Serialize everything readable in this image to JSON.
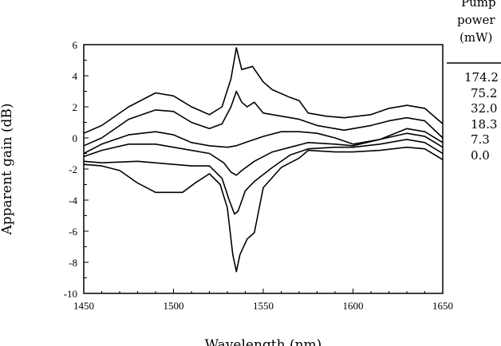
{
  "chart_data": {
    "type": "line",
    "title": "",
    "xlabel": "Wavelength (nm)",
    "ylabel": "Apparent gain (dB)",
    "xlim": [
      1450,
      1650
    ],
    "ylim": [
      -10,
      6
    ],
    "xticks": [
      1450,
      1500,
      1550,
      1600,
      1650
    ],
    "yticks": [
      6,
      4,
      2,
      0,
      -2,
      -4,
      -6,
      -8,
      -10
    ],
    "grid": false,
    "legend": {
      "title_lines": [
        "Pump",
        "power",
        "(mW)"
      ],
      "placement": "right"
    },
    "series": [
      {
        "name": "174.2",
        "x": [
          1450,
          1460,
          1475,
          1490,
          1500,
          1510,
          1520,
          1527,
          1532,
          1535,
          1538,
          1541,
          1544,
          1550,
          1555,
          1565,
          1570,
          1575,
          1585,
          1595,
          1610,
          1620,
          1630,
          1640,
          1650
        ],
        "y": [
          0.3,
          0.8,
          2.0,
          2.9,
          2.7,
          2.0,
          1.5,
          2.0,
          3.8,
          5.8,
          4.4,
          4.5,
          4.6,
          3.6,
          3.1,
          2.6,
          2.4,
          1.6,
          1.4,
          1.3,
          1.5,
          1.9,
          2.1,
          1.9,
          0.9
        ]
      },
      {
        "name": "75.2",
        "x": [
          1450,
          1460,
          1475,
          1490,
          1500,
          1510,
          1520,
          1527,
          1532,
          1535,
          1538,
          1541,
          1545,
          1550,
          1560,
          1570,
          1580,
          1595,
          1610,
          1620,
          1630,
          1640,
          1650
        ],
        "y": [
          -0.5,
          0.0,
          1.2,
          1.8,
          1.7,
          1.0,
          0.6,
          0.9,
          2.0,
          3.0,
          2.3,
          2.0,
          2.3,
          1.6,
          1.4,
          1.2,
          0.8,
          0.5,
          0.8,
          1.1,
          1.3,
          1.1,
          0.0
        ]
      },
      {
        "name": "32.0",
        "x": [
          1450,
          1460,
          1475,
          1490,
          1500,
          1510,
          1520,
          1530,
          1535,
          1540,
          1550,
          1560,
          1570,
          1580,
          1590,
          1600,
          1615,
          1630,
          1640,
          1650
        ],
        "y": [
          -1.0,
          -0.4,
          0.2,
          0.4,
          0.2,
          -0.3,
          -0.5,
          -0.6,
          -0.5,
          -0.3,
          0.1,
          0.4,
          0.4,
          0.3,
          0.0,
          -0.4,
          -0.1,
          0.6,
          0.4,
          -0.3
        ]
      },
      {
        "name": "18.3",
        "x": [
          1450,
          1460,
          1475,
          1490,
          1500,
          1510,
          1520,
          1528,
          1532,
          1535,
          1538,
          1545,
          1555,
          1565,
          1575,
          1590,
          1600,
          1615,
          1630,
          1640,
          1650
        ],
        "y": [
          -1.2,
          -0.8,
          -0.4,
          -0.4,
          -0.6,
          -0.8,
          -1.0,
          -1.6,
          -2.2,
          -2.4,
          -2.1,
          -1.5,
          -0.9,
          -0.6,
          -0.3,
          -0.4,
          -0.5,
          -0.1,
          0.3,
          0.1,
          -0.6
        ]
      },
      {
        "name": "7.3",
        "x": [
          1450,
          1460,
          1480,
          1500,
          1510,
          1520,
          1527,
          1531,
          1534,
          1536,
          1540,
          1545,
          1555,
          1565,
          1575,
          1590,
          1600,
          1615,
          1630,
          1640,
          1650
        ],
        "y": [
          -1.5,
          -1.6,
          -1.5,
          -1.7,
          -1.8,
          -1.8,
          -2.6,
          -4.0,
          -4.9,
          -4.7,
          -3.4,
          -2.8,
          -1.9,
          -1.1,
          -0.7,
          -0.6,
          -0.6,
          -0.4,
          -0.1,
          -0.3,
          -1.0
        ]
      },
      {
        "name": "0.0",
        "x": [
          1450,
          1460,
          1470,
          1480,
          1490,
          1505,
          1512,
          1520,
          1526,
          1530,
          1533,
          1535,
          1537,
          1541,
          1545,
          1550,
          1560,
          1570,
          1575,
          1590,
          1600,
          1615,
          1630,
          1640,
          1650
        ],
        "y": [
          -1.7,
          -1.8,
          -2.1,
          -2.9,
          -3.5,
          -3.5,
          -2.9,
          -2.3,
          -3.0,
          -4.5,
          -7.5,
          -8.6,
          -7.5,
          -6.5,
          -6.1,
          -3.2,
          -1.9,
          -1.3,
          -0.8,
          -0.9,
          -0.9,
          -0.8,
          -0.6,
          -0.7,
          -1.4
        ]
      }
    ]
  }
}
